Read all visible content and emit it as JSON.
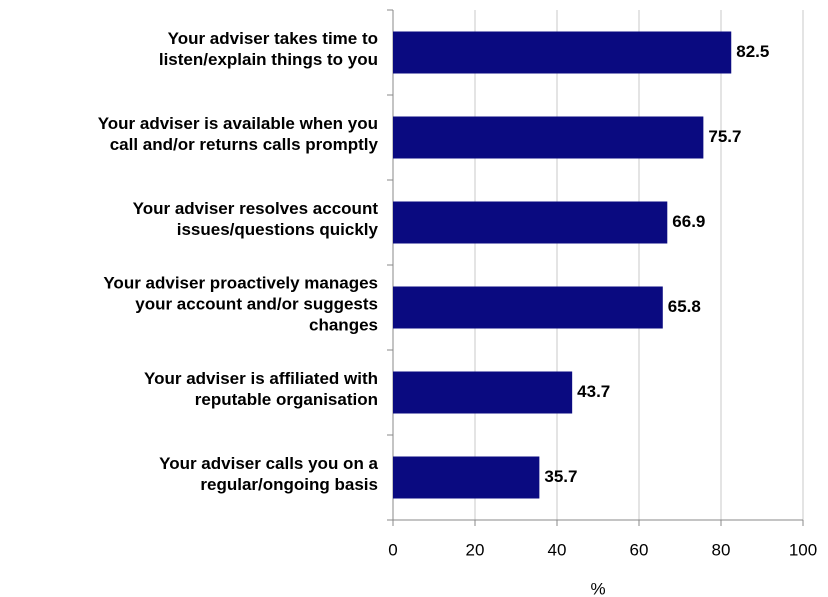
{
  "chart_data": {
    "type": "bar",
    "orientation": "horizontal",
    "categories": [
      "Your adviser takes time to\nlisten/explain things to you",
      "Your adviser is available when you\ncall and/or returns calls promptly",
      "Your adviser resolves account\nissues/questions quickly",
      "Your adviser proactively manages\nyour account and/or suggests\nchanges",
      "Your adviser is affiliated with\nreputable organisation",
      "Your adviser calls you on a\nregular/ongoing basis"
    ],
    "values": [
      82.5,
      75.7,
      66.9,
      65.8,
      43.7,
      35.7
    ],
    "color": "#0a0a80",
    "xlabel": "%",
    "xlim": [
      0,
      100
    ],
    "xticks": [
      0,
      20,
      40,
      60,
      80,
      100
    ],
    "grid": true
  }
}
